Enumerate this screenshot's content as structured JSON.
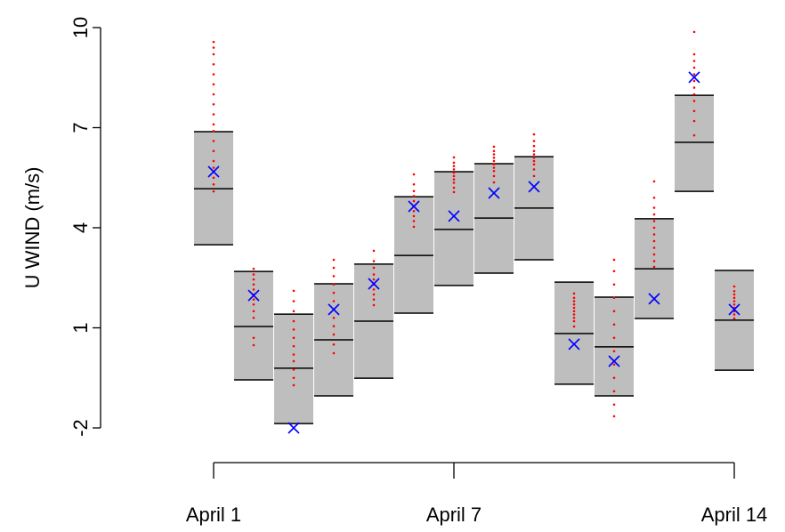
{
  "chart_data": {
    "type": "range-box",
    "y_label": "U WIND (m/s)",
    "x": [
      1,
      2,
      3,
      4,
      5,
      6,
      7,
      8,
      9,
      10,
      11,
      12,
      13,
      14
    ],
    "xlim": [
      0,
      15
    ],
    "xticks": [
      {
        "value": 1,
        "label": "April 1"
      },
      {
        "value": 7,
        "label": "April 7"
      },
      {
        "value": 14,
        "label": "April 14"
      }
    ],
    "ylim": [
      -2,
      10
    ],
    "yticks": [
      -2,
      1,
      4,
      7,
      10
    ],
    "high": [
      6.88,
      2.69,
      1.41,
      2.32,
      2.91,
      4.93,
      5.68,
      5.92,
      6.13,
      2.37,
      1.92,
      4.27,
      7.97,
      2.72
    ],
    "median": [
      5.17,
      1.04,
      -0.21,
      0.64,
      1.2,
      3.17,
      3.95,
      4.29,
      4.59,
      0.83,
      0.43,
      2.77,
      6.56,
      1.23
    ],
    "low": [
      3.49,
      -0.56,
      -1.87,
      -1.04,
      -0.51,
      1.44,
      2.27,
      2.64,
      3.04,
      -0.69,
      -1.04,
      1.28,
      5.09,
      -0.27
    ],
    "observed": [
      5.68,
      1.97,
      -2.0,
      1.55,
      2.32,
      4.64,
      4.35,
      5.04,
      5.23,
      0.51,
      0.0,
      1.87,
      8.51,
      1.55
    ],
    "ensemble": [
      [
        9.57,
        9.4,
        9.2,
        8.9,
        8.6,
        8.3,
        8.0,
        7.7,
        7.4,
        7.1,
        6.9,
        6.6,
        6.3,
        6.0,
        5.8,
        5.5,
        5.3,
        5.09
      ],
      [
        2.77,
        2.6,
        2.45,
        2.3,
        2.15,
        2.0,
        1.85,
        1.7,
        1.5,
        1.3,
        0.7,
        0.48
      ],
      [
        2.11,
        1.8,
        1.5,
        1.2,
        0.95,
        0.7,
        0.45,
        0.2,
        0.0,
        -0.25,
        -0.5,
        -0.72
      ],
      [
        3.04,
        2.8,
        2.55,
        2.3,
        2.05,
        1.8,
        1.55,
        1.3,
        1.05,
        0.8,
        0.5,
        0.24
      ],
      [
        3.31,
        3.0,
        2.8,
        2.6,
        2.45,
        2.3,
        2.15,
        2.0,
        1.85,
        1.68
      ],
      [
        5.6,
        5.3,
        5.1,
        4.95,
        4.8,
        4.65,
        4.5,
        4.35,
        4.2,
        4.03
      ],
      [
        6.11,
        5.95,
        5.85,
        5.75,
        5.65,
        5.55,
        5.45,
        5.35,
        5.2,
        5.07
      ],
      [
        6.43,
        6.3,
        6.2,
        6.1,
        6.0,
        5.9,
        5.8,
        5.7,
        5.55,
        5.36
      ],
      [
        6.8,
        6.6,
        6.45,
        6.3,
        6.2,
        6.1,
        6.0,
        5.9,
        5.75,
        5.55
      ],
      [
        2.03,
        1.9,
        1.8,
        1.7,
        1.6,
        1.5,
        1.4,
        1.3,
        1.2,
        1.04
      ],
      [
        3.04,
        2.7,
        2.3,
        1.9,
        1.5,
        1.1,
        0.7,
        0.3,
        -0.1,
        -0.5,
        -0.9,
        -1.3,
        -1.65
      ],
      [
        5.39,
        4.9,
        4.6,
        4.4,
        4.2,
        4.0,
        3.8,
        3.6,
        3.4,
        3.2,
        3.0,
        2.83
      ],
      [
        9.87,
        9.2,
        9.0,
        8.8,
        8.6,
        8.4,
        8.2,
        8.0,
        7.8,
        7.5,
        7.2,
        6.77
      ],
      [
        2.24,
        2.1,
        2.0,
        1.9,
        1.8,
        1.7,
        1.6,
        1.5,
        1.4,
        1.28
      ]
    ],
    "box_color": "#bebebe",
    "ensemble_color": "#ff0000",
    "observed_color": "#0000ff"
  }
}
